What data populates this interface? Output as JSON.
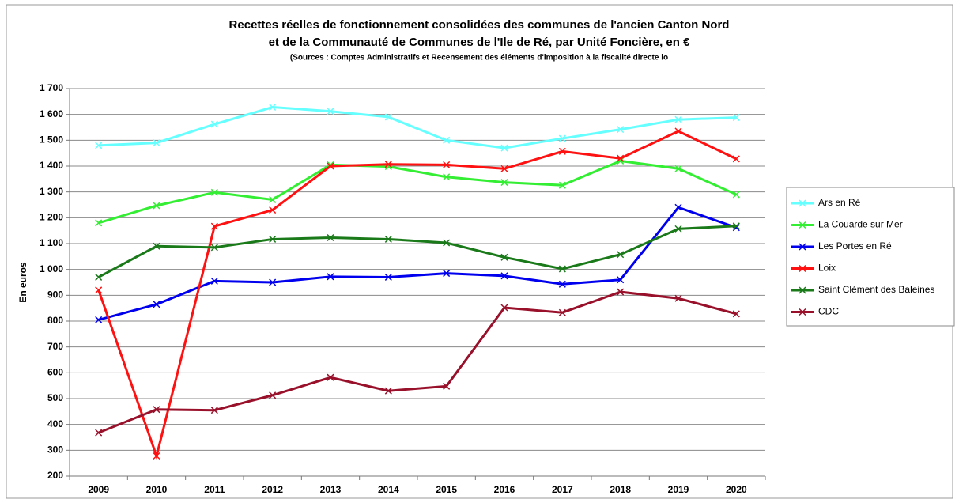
{
  "chart_data": {
    "type": "line",
    "title": [
      "Recettes réelles de fonctionnement consolidées des communes de l'ancien Canton Nord",
      "et de la Communauté de Communes de l'Ile de Ré, par Unité Foncière, en €"
    ],
    "subtitle": "(Sources : Comptes Administratifs et Recensement des éléments d'imposition à la fiscalité directe lo",
    "y_label": "En euros",
    "categories": [
      "2009",
      "2010",
      "2011",
      "2012",
      "2013",
      "2014",
      "2015",
      "2016",
      "2017",
      "2018",
      "2019",
      "2020"
    ],
    "series": [
      {
        "name": "Ars en Ré",
        "color": "#66ffff",
        "values": [
          1480,
          1490,
          1562,
          1628,
          1612,
          1590,
          1500,
          1470,
          1507,
          1542,
          1580,
          1588
        ]
      },
      {
        "name": "La Couarde sur Mer",
        "color": "#33ee33",
        "values": [
          1180,
          1247,
          1298,
          1270,
          1405,
          1398,
          1358,
          1337,
          1326,
          1420,
          1390,
          1290
        ]
      },
      {
        "name": "Les Portes en Ré",
        "color": "#0000ee",
        "values": [
          805,
          865,
          955,
          950,
          972,
          970,
          985,
          975,
          943,
          960,
          1240,
          1162
        ]
      },
      {
        "name": "Loix",
        "color": "#ff1111",
        "values": [
          920,
          278,
          1167,
          1230,
          1400,
          1407,
          1405,
          1390,
          1457,
          1430,
          1535,
          1428
        ]
      },
      {
        "name": "Saint Clément des Baleines",
        "color": "#1a7a1a",
        "values": [
          970,
          1090,
          1085,
          1117,
          1123,
          1117,
          1103,
          1047,
          1002,
          1058,
          1157,
          1168
        ]
      },
      {
        "name": "CDC",
        "color": "#99102a",
        "values": [
          368,
          458,
          455,
          513,
          582,
          530,
          548,
          852,
          833,
          913,
          888,
          828
        ]
      }
    ],
    "ylim": [
      200,
      1700
    ],
    "yticks": [
      200,
      300,
      400,
      500,
      600,
      700,
      800,
      900,
      {
        "value": 1000,
        "label": "1 000"
      },
      {
        "value": 1100,
        "label": "1 100"
      },
      {
        "value": 1200,
        "label": "1 200"
      },
      {
        "value": 1300,
        "label": "1 300"
      },
      {
        "value": 1400,
        "label": "1 400"
      },
      {
        "value": 1500,
        "label": "1 500"
      },
      {
        "value": 1600,
        "label": "1 600"
      },
      {
        "value": 1700,
        "label": "1 700"
      }
    ],
    "grid": true,
    "legend": "right"
  }
}
